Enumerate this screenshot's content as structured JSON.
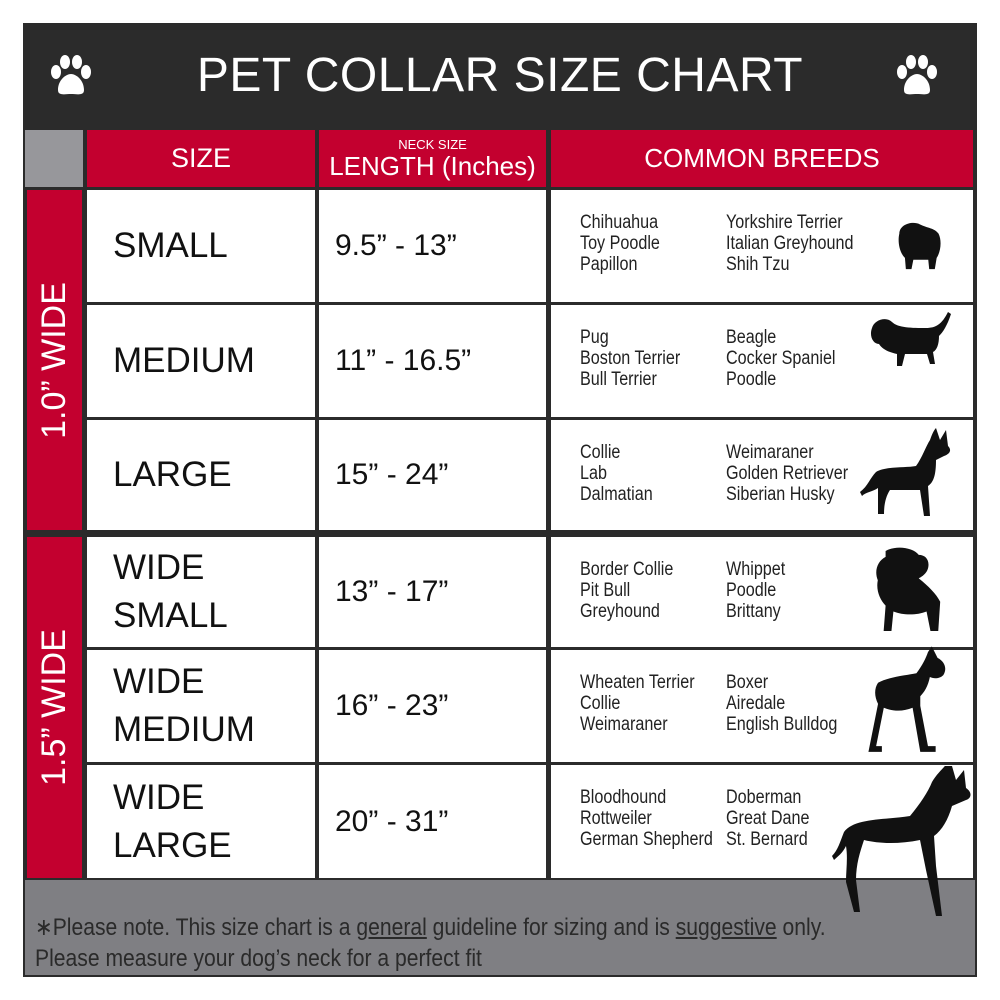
{
  "title": "PET COLLAR SIZE CHART",
  "icons": {
    "left": "paw-icon",
    "right": "paw-icon"
  },
  "colors": {
    "header": "#2b2b2b",
    "accent": "#c3002f",
    "footer": "#7f7f83"
  },
  "columns": {
    "size": "SIZE",
    "length_small": "NECK SIZE",
    "length": "LENGTH (Inches)",
    "breeds": "COMMON BREEDS"
  },
  "groups": [
    {
      "label": "1.0” WIDE"
    },
    {
      "label": "1.5” WIDE"
    }
  ],
  "rows": [
    {
      "size": "SMALL",
      "length": "9.5” - 13”",
      "breeds_a": [
        "Chihuahua",
        "Toy Poodle",
        "Papillon"
      ],
      "breeds_b": [
        "Yorkshire Terrier",
        "Italian Greyhound",
        "Shih Tzu"
      ],
      "icon": "small-dog-icon"
    },
    {
      "size": "MEDIUM",
      "length": "11” - 16.5”",
      "breeds_a": [
        "Pug",
        "Boston Terrier",
        "Bull Terrier"
      ],
      "breeds_b": [
        "Beagle",
        "Cocker Spaniel",
        "Poodle"
      ],
      "icon": "dachshund-icon"
    },
    {
      "size": "LARGE",
      "length": "15” - 24”",
      "breeds_a": [
        "Collie",
        "Lab",
        "Dalmatian"
      ],
      "breeds_b": [
        "Weimaraner",
        "Golden Retriever",
        "Siberian Husky"
      ],
      "icon": "shepherd-dog-icon"
    },
    {
      "size": "WIDE\nSMALL",
      "length": "13” - 17”",
      "breeds_a": [
        "Border Collie",
        "Pit Bull",
        "Greyhound"
      ],
      "breeds_b": [
        "Whippet",
        "Poodle",
        "Brittany"
      ],
      "icon": "bulldog-icon"
    },
    {
      "size": "WIDE\nMEDIUM",
      "length": "16” - 23”",
      "breeds_a": [
        "Wheaten Terrier",
        "Collie",
        "Weimaraner"
      ],
      "breeds_b": [
        "Boxer",
        "Airedale",
        "English Bulldog"
      ],
      "icon": "pitbull-icon"
    },
    {
      "size": "WIDE\nLARGE",
      "length": "20” - 31”",
      "breeds_a": [
        "Bloodhound",
        "Rottweiler",
        "German Shepherd"
      ],
      "breeds_b": [
        "Doberman",
        "Great Dane",
        "St. Bernard"
      ],
      "icon": "doberman-icon"
    }
  ],
  "footer": {
    "star": "∗",
    "p1": "Please note. This size chart is a",
    "u1": "general",
    "p2": " guideline for sizing and is",
    "u2": "suggestive",
    "p3": " only.",
    "line2": "Please measure your dog’s neck for a perfect fit"
  }
}
